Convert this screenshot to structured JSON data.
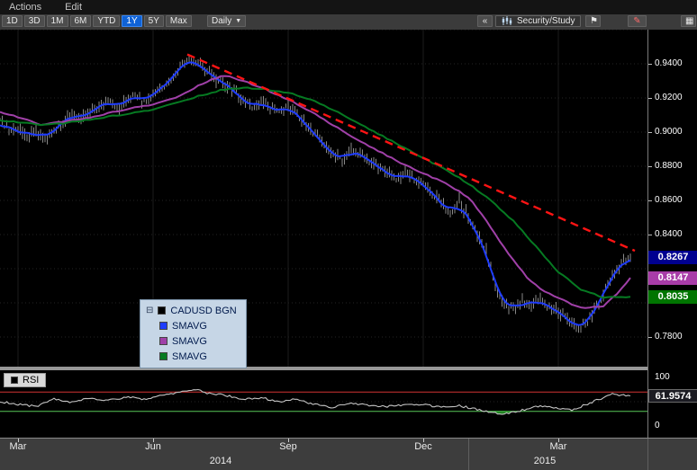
{
  "menu_bar": {
    "items": [
      "Actions",
      "Edit"
    ]
  },
  "toolbar": {
    "range_buttons": [
      "1D",
      "3D",
      "1M",
      "6M",
      "YTD",
      "1Y",
      "5Y",
      "Max"
    ],
    "selected_range": "1Y",
    "frequency_label": "Daily",
    "frequency_caret": "▼",
    "collapse_label": "«",
    "security_study_label": "Security/Study",
    "flag_icon": "⚑",
    "pencil_icon": "✎",
    "panel_icon": "▦"
  },
  "divider": {
    "resize_icon": "⇕"
  },
  "legend": {
    "expander": "⊟",
    "items": [
      {
        "label": "CADUSD BGN",
        "color": "#000000"
      },
      {
        "label": "SMAVG",
        "color": "#1e3cff"
      },
      {
        "label": "SMAVG",
        "color": "#a040a8"
      },
      {
        "label": "SMAVG",
        "color": "#067a22"
      }
    ]
  },
  "price_axis": {
    "ticks": [
      {
        "label": "0.9400",
        "value": 0.94
      },
      {
        "label": "0.9200",
        "value": 0.92
      },
      {
        "label": "0.9000",
        "value": 0.9
      },
      {
        "label": "0.8800",
        "value": 0.88
      },
      {
        "label": "0.8600",
        "value": 0.86
      },
      {
        "label": "0.8400",
        "value": 0.84
      },
      {
        "label": "0.7800",
        "value": 0.78
      }
    ],
    "badges": [
      {
        "label": "0.8267",
        "value": 0.8267,
        "bg": "#000090",
        "fg": "#ffffff"
      },
      {
        "label": "0.8147",
        "value": 0.8147,
        "bg": "#a83ca8",
        "fg": "#ffffff"
      },
      {
        "label": "0.8035",
        "value": 0.8035,
        "bg": "#007500",
        "fg": "#ffffff"
      }
    ]
  },
  "rsi_panel": {
    "label": "RSI",
    "ticks": [
      {
        "label": "100",
        "value": 100
      },
      {
        "label": "0",
        "value": 0
      }
    ],
    "badge": {
      "label": "61.9574",
      "value": 61.9574,
      "bg": "#1b1b22",
      "fg": "#ffffff"
    }
  },
  "x_axis": {
    "months": [
      {
        "label": "Mar",
        "m": 0
      },
      {
        "label": "Jun",
        "m": 3
      },
      {
        "label": "Sep",
        "m": 6
      },
      {
        "label": "Dec",
        "m": 9
      },
      {
        "label": "Mar",
        "m": 12
      }
    ],
    "years": [
      {
        "label": "2014",
        "m": 4.5
      },
      {
        "label": "2015",
        "m": 11.7
      }
    ],
    "separators_m": [
      10
    ]
  },
  "chart_data": [
    {
      "type": "candlestick",
      "symbol": "CADUSD BGN",
      "x_unit": "months since 2014-03-01",
      "ylim": [
        0.7616,
        0.96
      ],
      "grid_step": 0.02,
      "y_tick_labels": [
        "0.9400",
        "0.9200",
        "0.9000",
        "0.8800",
        "0.8600",
        "0.8400",
        "0.7800"
      ],
      "last_values": {
        "CADUSD_BGN": 0.8267,
        "SMAVG_purple": 0.8147,
        "SMAVG_green": 0.8035
      },
      "trendline": {
        "style": "dashed",
        "color": "#ff1414",
        "from": [
          3.76,
          0.9455
        ],
        "to": [
          13.7,
          0.8305
        ]
      },
      "series": [
        {
          "name": "CADUSD BGN",
          "style": "candles",
          "color": "#d6d6d6",
          "x": [
            -0.4,
            -0.2,
            0.0,
            0.2,
            0.4,
            0.6,
            0.8,
            1.0,
            1.2,
            1.4,
            1.6,
            1.8,
            2.0,
            2.2,
            2.4,
            2.6,
            2.8,
            3.0,
            3.2,
            3.4,
            3.6,
            3.8,
            4.0,
            4.2,
            4.4,
            4.6,
            4.8,
            5.0,
            5.2,
            5.4,
            5.6,
            5.8,
            6.0,
            6.2,
            6.4,
            6.6,
            6.8,
            7.0,
            7.2,
            7.4,
            7.6,
            7.8,
            8.0,
            8.2,
            8.4,
            8.6,
            8.8,
            9.0,
            9.2,
            9.4,
            9.6,
            9.8,
            10.0,
            10.2,
            10.4,
            10.6,
            10.8,
            11.0,
            11.2,
            11.4,
            11.6,
            11.8,
            12.0,
            12.2,
            12.4,
            12.6,
            12.8,
            13.0,
            13.2,
            13.4,
            13.6
          ],
          "y": [
            0.908,
            0.901,
            0.903,
            0.896,
            0.901,
            0.895,
            0.9,
            0.906,
            0.91,
            0.907,
            0.912,
            0.9155,
            0.918,
            0.914,
            0.919,
            0.921,
            0.918,
            0.922,
            0.925,
            0.93,
            0.938,
            0.944,
            0.939,
            0.936,
            0.931,
            0.928,
            0.925,
            0.918,
            0.915,
            0.918,
            0.914,
            0.912,
            0.915,
            0.91,
            0.905,
            0.898,
            0.892,
            0.887,
            0.883,
            0.89,
            0.887,
            0.883,
            0.88,
            0.876,
            0.872,
            0.876,
            0.873,
            0.87,
            0.864,
            0.858,
            0.852,
            0.86,
            0.85,
            0.84,
            0.83,
            0.81,
            0.8,
            0.796,
            0.801,
            0.799,
            0.802,
            0.798,
            0.795,
            0.79,
            0.785,
            0.788,
            0.795,
            0.805,
            0.815,
            0.823,
            0.8267
          ]
        },
        {
          "name": "SMAVG",
          "style": "line",
          "color": "#1e3cff",
          "derived_from": "CADUSD BGN",
          "smooth_window": 4
        },
        {
          "name": "SMAVG",
          "style": "line",
          "color": "#a040a8",
          "x": [
            -0.4,
            0,
            0.5,
            1,
            1.5,
            2,
            2.5,
            3,
            3.5,
            4,
            4.3,
            4.6,
            5,
            5.5,
            6,
            6.5,
            7,
            7.5,
            8,
            8.5,
            9,
            9.5,
            10,
            10.3,
            10.6,
            11,
            11.3,
            11.6,
            12,
            12.3,
            12.6,
            13,
            13.3,
            13.6
          ],
          "y": [
            0.912,
            0.909,
            0.904,
            0.906,
            0.908,
            0.911,
            0.914,
            0.916,
            0.92,
            0.927,
            0.931,
            0.933,
            0.93,
            0.925,
            0.919,
            0.912,
            0.904,
            0.896,
            0.889,
            0.882,
            0.876,
            0.87,
            0.862,
            0.852,
            0.84,
            0.825,
            0.815,
            0.808,
            0.803,
            0.799,
            0.797,
            0.798,
            0.805,
            0.8147
          ]
        },
        {
          "name": "SMAVG",
          "style": "line",
          "color": "#067a22",
          "x": [
            -0.4,
            0,
            0.5,
            1,
            1.5,
            2,
            2.5,
            3,
            3.5,
            4,
            4.5,
            5,
            5.5,
            6,
            6.5,
            7,
            7.5,
            8,
            8.5,
            9,
            9.5,
            10,
            10.5,
            11,
            11.5,
            12,
            12.5,
            13,
            13.6
          ],
          "y": [
            0.907,
            0.906,
            0.904,
            0.905,
            0.907,
            0.909,
            0.911,
            0.913,
            0.917,
            0.921,
            0.9245,
            0.926,
            0.925,
            0.923,
            0.919,
            0.913,
            0.906,
            0.899,
            0.892,
            0.885,
            0.878,
            0.87,
            0.86,
            0.848,
            0.833,
            0.818,
            0.808,
            0.803,
            0.8035
          ]
        }
      ]
    },
    {
      "type": "line",
      "name": "RSI",
      "ylim": [
        0,
        100
      ],
      "overbought": 70,
      "oversold": 30,
      "last": 61.9574,
      "line_color": "#c4c4c4",
      "overbought_color": "#d23434",
      "oversold_color": "#58c858",
      "fill_below_oversold": "#30cc30",
      "x": [
        -0.4,
        0,
        0.4,
        0.8,
        1.2,
        1.6,
        2.0,
        2.4,
        2.8,
        3.2,
        3.6,
        3.9,
        4.2,
        4.6,
        5.0,
        5.4,
        5.8,
        6.2,
        6.6,
        7.0,
        7.4,
        7.8,
        8.2,
        8.6,
        9.0,
        9.4,
        9.8,
        10.2,
        10.5,
        10.8,
        11.1,
        11.4,
        11.7,
        12.0,
        12.3,
        12.6,
        12.9,
        13.2,
        13.6
      ],
      "y": [
        50,
        45,
        40,
        55,
        48,
        58,
        52,
        60,
        55,
        62,
        70,
        76,
        68,
        63,
        55,
        58,
        50,
        55,
        44,
        38,
        48,
        42,
        40,
        44,
        45,
        38,
        42,
        34,
        28,
        25,
        30,
        38,
        42,
        36,
        32,
        44,
        55,
        65,
        62
      ]
    }
  ]
}
